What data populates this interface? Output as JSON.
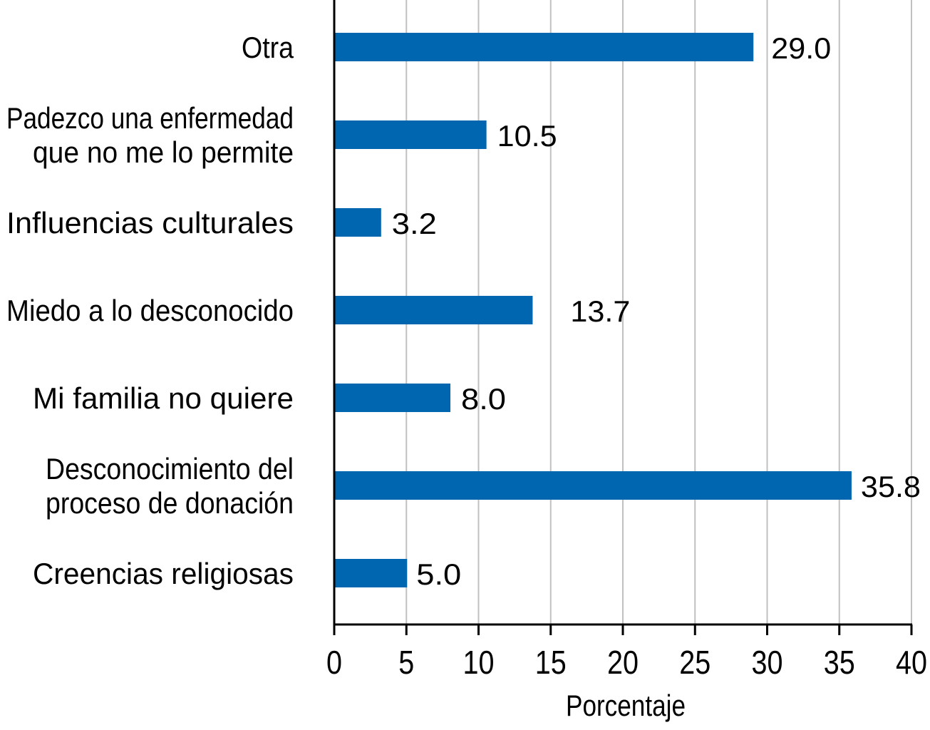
{
  "chart_data": {
    "type": "bar",
    "orientation": "horizontal",
    "title": "",
    "xlabel": "Porcentaje",
    "ylabel": "",
    "xlim": [
      0,
      40
    ],
    "x_ticks": [
      "0",
      "5",
      "10",
      "15",
      "20",
      "25",
      "30",
      "35",
      "40"
    ],
    "grid": "vertical",
    "categories": [
      [
        "Otra"
      ],
      [
        "Padezco una enfermedad",
        "que no me lo permite"
      ],
      [
        "Influencias culturales"
      ],
      [
        "Miedo a lo desconocido"
      ],
      [
        "Mi familia no quiere"
      ],
      [
        "Desconocimiento del",
        "proceso de donación"
      ],
      [
        "Creencias religiosas"
      ]
    ],
    "values": [
      29.0,
      10.5,
      3.2,
      13.7,
      8.0,
      35.8,
      5.0
    ],
    "value_labels": [
      "29.0",
      "10.5",
      "3.2",
      "13.7",
      "8.0",
      "35.8",
      "5.0"
    ],
    "bar_color": "#0066b0",
    "grid_color": "#c0c0c0"
  }
}
